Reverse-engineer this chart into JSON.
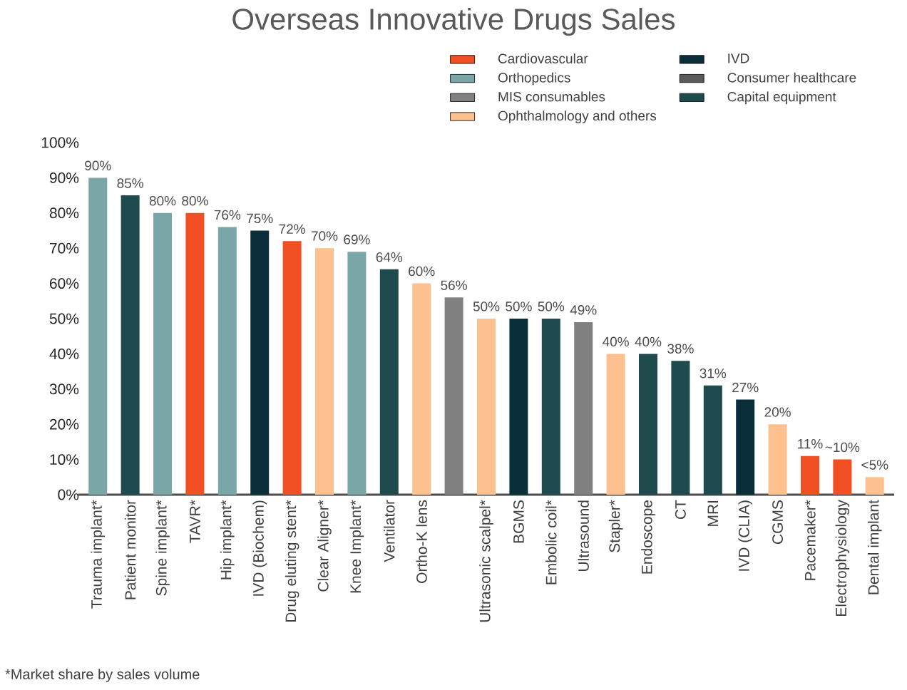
{
  "chart_data": {
    "type": "bar",
    "title": "Overseas Innovative Drugs Sales",
    "categories": [
      "Trauma implant*",
      "Patient monitor",
      "Spine implant*",
      "TAVR*",
      "Hip implant*",
      "IVD (Biochem)",
      "Drug eluting stent*",
      "Clear Aligner*",
      "Knee Implant*",
      "Ventilator",
      "Ortho-K lens",
      null,
      "Ultrasonic scalpel*",
      "BGMS",
      "Embolic coil*",
      "Ultrasound",
      "Stapler*",
      "Endoscope",
      "CT",
      "MRI",
      "IVD (CLIA)",
      "CGMS",
      "Pacemaker*",
      "Electrophysiology",
      "Dental implant"
    ],
    "series": [
      {
        "name": "Cardiovascular",
        "color": "#f04e23",
        "values": [
          null,
          null,
          null,
          80,
          null,
          null,
          72,
          null,
          null,
          null,
          null,
          null,
          null,
          null,
          null,
          null,
          null,
          null,
          null,
          null,
          null,
          null,
          11,
          10,
          null
        ],
        "value_labels": [
          null,
          null,
          null,
          "80%",
          null,
          null,
          "72%",
          null,
          null,
          null,
          null,
          null,
          null,
          null,
          null,
          null,
          null,
          null,
          null,
          null,
          null,
          null,
          "11%",
          "~10%",
          null
        ]
      },
      {
        "name": "Orthopedics",
        "color": "#7aa6a8",
        "values": [
          90,
          null,
          80,
          null,
          76,
          null,
          null,
          null,
          69,
          null,
          null,
          null,
          null,
          null,
          null,
          null,
          null,
          null,
          null,
          null,
          null,
          null,
          null,
          null,
          null
        ],
        "value_labels": [
          "90%",
          null,
          "80%",
          null,
          "76%",
          null,
          null,
          null,
          "69%",
          null,
          null,
          null,
          null,
          null,
          null,
          null,
          null,
          null,
          null,
          null,
          null,
          null,
          null,
          null,
          null
        ]
      },
      {
        "name": "MIS consumables",
        "color": "#808080",
        "values": [
          null,
          null,
          null,
          null,
          null,
          null,
          null,
          null,
          null,
          null,
          null,
          56,
          null,
          null,
          null,
          49,
          null,
          null,
          null,
          null,
          null,
          null,
          null,
          null,
          null
        ],
        "value_labels": [
          null,
          null,
          null,
          null,
          null,
          null,
          null,
          null,
          null,
          null,
          null,
          "56%",
          null,
          null,
          null,
          "49%",
          null,
          null,
          null,
          null,
          null,
          null,
          null,
          null,
          null
        ]
      },
      {
        "name": "Ophthalmology and others",
        "color": "#fcc18f",
        "values": [
          null,
          null,
          null,
          null,
          null,
          null,
          null,
          70,
          null,
          null,
          60,
          null,
          50,
          null,
          null,
          null,
          40,
          null,
          null,
          null,
          null,
          20,
          null,
          null,
          5
        ],
        "value_labels": [
          null,
          null,
          null,
          null,
          null,
          null,
          null,
          "70%",
          null,
          null,
          "60%",
          null,
          "50%",
          null,
          null,
          null,
          "40%",
          null,
          null,
          null,
          null,
          "20%",
          null,
          null,
          "<5%"
        ]
      },
      {
        "name": "IVD",
        "color": "#0b2f3a",
        "values": [
          null,
          null,
          null,
          null,
          null,
          75,
          null,
          null,
          null,
          null,
          null,
          null,
          null,
          50,
          null,
          null,
          null,
          null,
          null,
          null,
          27,
          null,
          null,
          null,
          null
        ],
        "value_labels": [
          null,
          null,
          null,
          null,
          null,
          "75%",
          null,
          null,
          null,
          null,
          null,
          null,
          null,
          "50%",
          null,
          null,
          null,
          null,
          null,
          null,
          "27%",
          null,
          null,
          null,
          null
        ]
      },
      {
        "name": "Consumer healthcare",
        "color": "#5a5a5a",
        "values": [
          null,
          null,
          null,
          null,
          null,
          null,
          null,
          null,
          null,
          null,
          null,
          null,
          null,
          null,
          null,
          null,
          null,
          null,
          null,
          null,
          null,
          null,
          null,
          null,
          null
        ]
      },
      {
        "name": "Capital equipment",
        "color": "#1f4a4e",
        "values": [
          null,
          85,
          null,
          null,
          null,
          null,
          null,
          null,
          null,
          64,
          null,
          null,
          null,
          null,
          50,
          null,
          null,
          40,
          38,
          31,
          null,
          null,
          null,
          null,
          null
        ],
        "value_labels": [
          null,
          "85%",
          null,
          null,
          null,
          null,
          null,
          null,
          null,
          "64%",
          null,
          null,
          null,
          null,
          "50%",
          null,
          null,
          "40%",
          "38%",
          "31%",
          null,
          null,
          null,
          null,
          null
        ]
      }
    ],
    "ylim": [
      0,
      100
    ],
    "yticks": [
      {
        "value": 0,
        "label": "0%"
      },
      {
        "value": 10,
        "label": "10%"
      },
      {
        "value": 20,
        "label": "20%"
      },
      {
        "value": 30,
        "label": "30%"
      },
      {
        "value": 40,
        "label": "40%"
      },
      {
        "value": 50,
        "label": "50%"
      },
      {
        "value": 60,
        "label": "60%"
      },
      {
        "value": 70,
        "label": "70%"
      },
      {
        "value": 80,
        "label": "80%"
      },
      {
        "value": 90,
        "label": "90%"
      },
      {
        "value": 100,
        "label": "100%"
      }
    ],
    "grid": false,
    "legend": "top right",
    "annotations": [
      "*Market share by sales volume"
    ]
  }
}
